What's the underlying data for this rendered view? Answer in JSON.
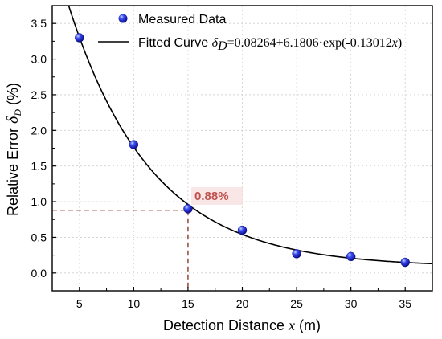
{
  "chart_data": {
    "type": "scatter",
    "xlabel": {
      "prefix": "Detection Distance ",
      "var": "x",
      "suffix": " (m)"
    },
    "ylabel": {
      "prefix": "Relative Error ",
      "var": "δ",
      "sub": "D",
      "suffix": " (%)"
    },
    "xlim": [
      2.5,
      37.5
    ],
    "ylim": [
      -0.25,
      3.75
    ],
    "xticks": [
      "5",
      "10",
      "15",
      "20",
      "25",
      "30",
      "35"
    ],
    "yticks": [
      "0.0",
      "0.5",
      "1.0",
      "1.5",
      "2.0",
      "2.5",
      "3.0",
      "3.5"
    ],
    "grid": true,
    "legend_position": "top-right",
    "series": [
      {
        "name": "Measured Data",
        "kind": "points",
        "color": "#1c1cd6",
        "x": [
          5,
          10,
          15,
          20,
          25,
          30,
          35
        ],
        "y": [
          3.3,
          1.8,
          0.9,
          0.6,
          0.27,
          0.23,
          0.15
        ]
      },
      {
        "name": "Fitted Curve",
        "kind": "curve",
        "color": "#000000",
        "equation": {
          "var": "δ",
          "sub": "D",
          "rhs_pre": "=0.08264+6.1806·exp(-0.13012",
          "rhs_var": "x",
          "rhs_post": ")"
        },
        "a": 0.08264,
        "b": 6.1806,
        "c": 0.13012
      }
    ],
    "annotation": {
      "text": "0.88%",
      "x": 15,
      "y": 0.88,
      "color": "#c0504d",
      "line_color": "#8b3a2a"
    }
  }
}
